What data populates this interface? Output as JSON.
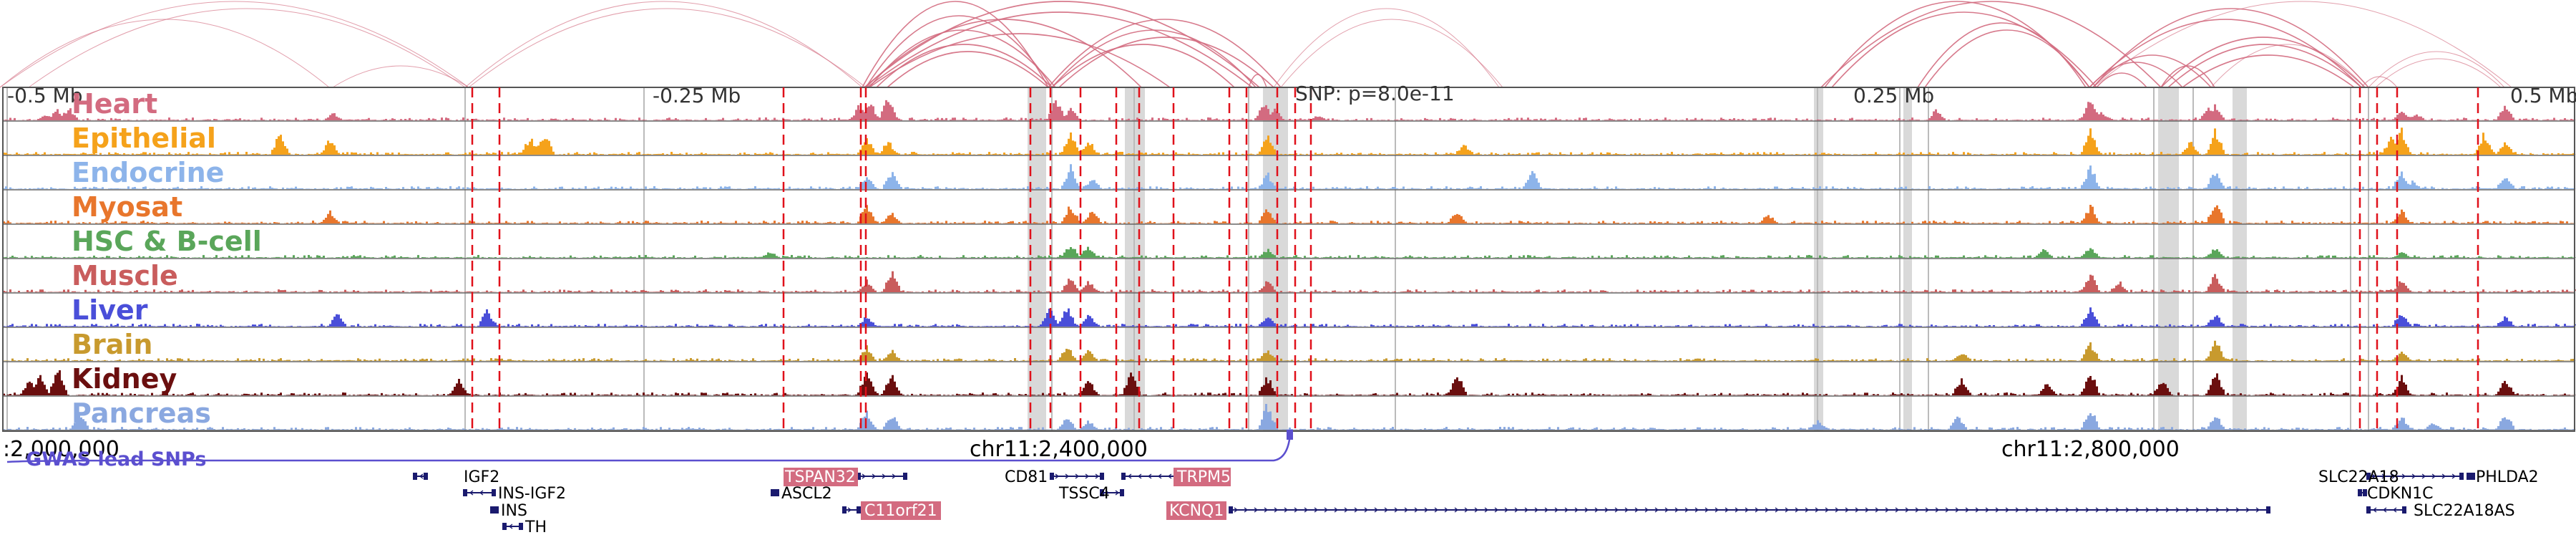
{
  "ruler": {
    "labels": [
      "-0.5 Mb",
      "-0.25 Mb",
      "0.25 Mb",
      "0.5 Mb"
    ],
    "snp_label": "SNP: p=8.0e-11"
  },
  "tracks": [
    {
      "label": "Heart",
      "color": "#d36b80"
    },
    {
      "label": "Epithelial",
      "color": "#f5a21b"
    },
    {
      "label": "Endocrine",
      "color": "#8db4ea"
    },
    {
      "label": "Myosat",
      "color": "#e8762c"
    },
    {
      "label": "HSC & B-cell",
      "color": "#5aa65a"
    },
    {
      "label": "Muscle",
      "color": "#c95d5d"
    },
    {
      "label": "Liver",
      "color": "#4a4fd9"
    },
    {
      "label": "Brain",
      "color": "#c89a2e"
    },
    {
      "label": "Kidney",
      "color": "#6b0f0f"
    },
    {
      "label": "Pancreas",
      "color": "#8aa8e0"
    }
  ],
  "coords": {
    "left": ":2,000,000",
    "mid": "chr11:2,400,000",
    "right": "chr11:2,800,000"
  },
  "gwas_label": "GWAS lead SNPs",
  "genes": [
    {
      "name": "IGF2",
      "highlight": false
    },
    {
      "name": "INS-IGF2",
      "highlight": false
    },
    {
      "name": "INS",
      "highlight": false
    },
    {
      "name": "TH",
      "highlight": false
    },
    {
      "name": "TSPAN32",
      "highlight": true
    },
    {
      "name": "ASCL2",
      "highlight": false
    },
    {
      "name": "C11orf21",
      "highlight": true
    },
    {
      "name": "CD81",
      "highlight": false
    },
    {
      "name": "TSSC4",
      "highlight": false
    },
    {
      "name": "TRPM5",
      "highlight": true
    },
    {
      "name": "KCNQ1",
      "highlight": true
    },
    {
      "name": "SLC22A18",
      "highlight": false
    },
    {
      "name": "PHLDA2",
      "highlight": false
    },
    {
      "name": "CDKN1C",
      "highlight": false
    },
    {
      "name": "SLC22A18AS",
      "highlight": false
    }
  ],
  "colors": {
    "arc": "#d36b80",
    "snp_line": "#e0101a",
    "highlight_band": "#d9d9d9",
    "gene_box": "#1a1a6e",
    "gene_highlight": "#d36b80",
    "gwas": "#5b4fcf"
  }
}
